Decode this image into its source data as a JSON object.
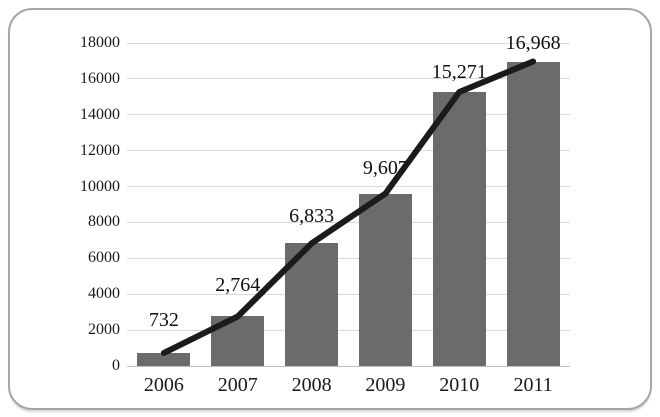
{
  "chart_data": {
    "type": "bar",
    "subtype": "bar-with-line-overlay",
    "title": "",
    "xlabel": "",
    "ylabel": "",
    "categories": [
      "2006",
      "2007",
      "2008",
      "2009",
      "2010",
      "2011"
    ],
    "values": [
      732,
      2764,
      6833,
      9607,
      15271,
      16968
    ],
    "data_labels": [
      "732",
      "2,764",
      "6,833",
      "9,607",
      "15,271",
      "16,968"
    ],
    "series": [
      {
        "name": "bars",
        "type": "bar",
        "values": [
          732,
          2764,
          6833,
          9607,
          15271,
          16968
        ]
      },
      {
        "name": "trend",
        "type": "line",
        "values": [
          732,
          2764,
          6833,
          9607,
          15271,
          16968
        ]
      }
    ],
    "y_ticks": [
      0,
      2000,
      4000,
      6000,
      8000,
      10000,
      12000,
      14000,
      16000,
      18000
    ],
    "y_tick_labels": [
      "0",
      "2000",
      "4000",
      "6000",
      "8000",
      "10000",
      "12000",
      "14000",
      "16000",
      "18000"
    ],
    "ylim": [
      0,
      18000
    ],
    "grid": true,
    "legend": "none",
    "colors": {
      "bar": "#6b6b6b",
      "line": "#1b1b1b",
      "gridline": "#d9d9d9",
      "zero_line": "#bfbfbf",
      "text": "#1a1a1a",
      "panel_border": "#a6a6a6",
      "background": "#ffffff"
    }
  }
}
